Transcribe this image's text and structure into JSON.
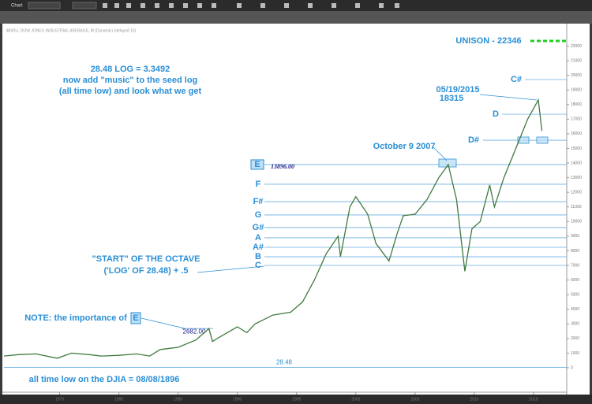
{
  "chart_data": {
    "type": "line",
    "window_title": "Chart",
    "header": "$INDU, DOW JONES INDUSTRIAL AVERAGE, M (Dynamic) (delayed 15)",
    "x": [
      1970.3,
      1971.5,
      1973.0,
      1974.8,
      1976.0,
      1977.5,
      1978.5,
      1980.0,
      1981.5,
      1982.6,
      1983.5,
      1985.0,
      1986.5,
      1987.6,
      1987.9,
      1988.5,
      1990.0,
      1990.8,
      1991.5,
      1993.0,
      1994.5,
      1995.5,
      1996.5,
      1997.5,
      1998.5,
      1998.7,
      1999.5,
      2000.0,
      2001.0,
      2001.7,
      2002.8,
      2003.5,
      2004.0,
      2005.0,
      2006.0,
      2007.0,
      2007.8,
      2008.5,
      2009.2,
      2009.8,
      2010.5,
      2011.3,
      2011.7,
      2012.5,
      2013.5,
      2014.0,
      2014.5,
      2015.4,
      2015.7
    ],
    "series": [
      {
        "color": "#3f7a3f",
        "values": [
          800,
          900,
          950,
          650,
          1000,
          900,
          800,
          850,
          950,
          800,
          1250,
          1400,
          1900,
          2682,
          1800,
          2100,
          2800,
          2400,
          3000,
          3600,
          3800,
          4500,
          6000,
          7800,
          9000,
          7600,
          11000,
          11700,
          10500,
          8500,
          7300,
          9200,
          10400,
          10500,
          11500,
          13000,
          13896,
          11500,
          6600,
          9500,
          10000,
          12500,
          11000,
          13000,
          15000,
          16000,
          17000,
          18315,
          16200
        ]
      }
    ],
    "xlim": [
      1970.3,
      2017.8
    ],
    "xticks": [
      1975,
      1980,
      1985,
      1990,
      1995,
      2000,
      2005,
      2010,
      2015
    ],
    "ylim": [
      -1670,
      23480
    ],
    "yticks": [
      0,
      1000,
      2000,
      3000,
      4000,
      5000,
      6000,
      7000,
      8000,
      9000,
      10000,
      11000,
      12000,
      13000,
      14000,
      15000,
      16000,
      17000,
      18000,
      19000,
      20000,
      21000,
      22000
    ],
    "levels": [
      {
        "label": "C#",
        "value": 19710
      },
      {
        "label": "D",
        "value": 17340
      },
      {
        "label": "D#",
        "value": 15560
      },
      {
        "label": "E",
        "value": 13896,
        "value_label": "13896.00"
      },
      {
        "label": "F",
        "value": 12550
      },
      {
        "label": "F#",
        "value": 11360
      },
      {
        "label": "G",
        "value": 10450
      },
      {
        "label": "G#",
        "value": 9590
      },
      {
        "label": "A",
        "value": 8890
      },
      {
        "label": "A#",
        "value": 8240
      },
      {
        "label": "B",
        "value": 7590
      },
      {
        "label": "C",
        "value": 7000
      },
      {
        "value": 28.48,
        "value_label": "28.48"
      },
      {
        "value": 2682,
        "value_label": "2682.00"
      },
      {
        "label": "UNISON - 22346",
        "value": 22346,
        "color": "#22cc22"
      }
    ],
    "annotations": [
      "28.48 LOG = 3.3492",
      "now add \"music\" to the seed log",
      "(all time low) and look what we get",
      "05/19/2015",
      "18315",
      "October 9 2007",
      "\"START\" OF THE OCTAVE",
      "('LOG' OF 28.48) + .5",
      "NOTE: the importance of",
      "E",
      "all time low on the DJIA = 08/08/1896"
    ]
  }
}
